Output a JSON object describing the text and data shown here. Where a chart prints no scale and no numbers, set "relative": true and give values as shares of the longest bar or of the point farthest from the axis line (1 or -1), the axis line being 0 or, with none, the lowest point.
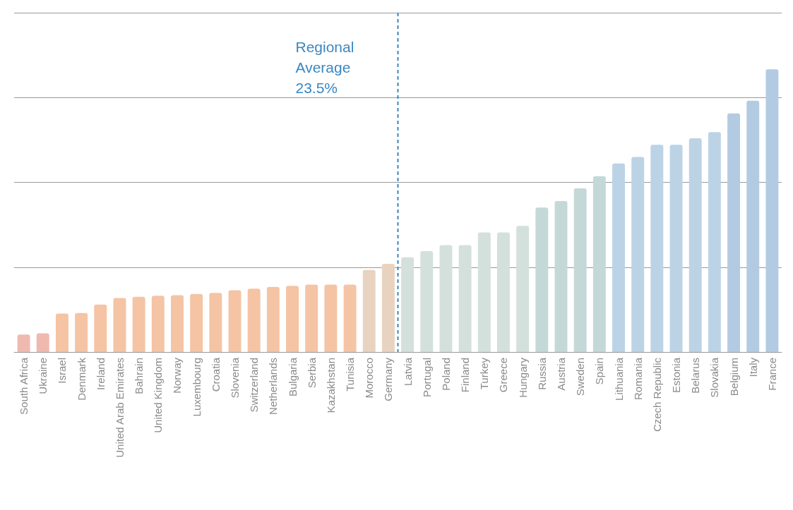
{
  "chart_data": {
    "type": "bar",
    "relative": true,
    "grid": "y",
    "categories": [
      "South Africa",
      "Ukraine",
      "Israel",
      "Denmark",
      "Ireland",
      "United Arab Emirates",
      "Bahrain",
      "United Kingdom",
      "Norway",
      "Luxembourg",
      "Croatia",
      "Slovenia",
      "Switzerland",
      "Netherlands",
      "Bulgaria",
      "Serbia",
      "Kazakhstan",
      "Tunisia",
      "Morocco",
      "Germany",
      "Latvia",
      "Portugal",
      "Poland",
      "Finland",
      "Turkey",
      "Greece",
      "Hungary",
      "Russia",
      "Austria",
      "Sweden",
      "Spain",
      "Lithuania",
      "Romania",
      "Czech Republic",
      "Estonia",
      "Belarus",
      "Slovakia",
      "Belgium",
      "Italy",
      "France"
    ],
    "values": [
      0.062,
      0.066,
      0.136,
      0.138,
      0.168,
      0.191,
      0.195,
      0.199,
      0.201,
      0.205,
      0.209,
      0.218,
      0.224,
      0.23,
      0.234,
      0.238,
      0.238,
      0.238,
      0.29,
      0.312,
      0.335,
      0.357,
      0.378,
      0.378,
      0.423,
      0.423,
      0.446,
      0.511,
      0.534,
      0.579,
      0.622,
      0.667,
      0.69,
      0.733,
      0.733,
      0.756,
      0.778,
      0.844,
      0.889,
      1
    ],
    "colors": [
      "#f0b9b0",
      "#f0b9b0",
      "#f4c4a4",
      "#f4c4a4",
      "#f4c4a4",
      "#f4c4a4",
      "#f4c4a4",
      "#f4c4a4",
      "#f4c4a4",
      "#f4c4a4",
      "#f4c4a4",
      "#f4c4a4",
      "#f4c4a4",
      "#f4c4a4",
      "#f4c4a4",
      "#f4c4a4",
      "#f4c4a4",
      "#f4c4a4",
      "#e8d3c0",
      "#e8d3c0",
      "#d3e0dc",
      "#d3e0dc",
      "#d3e0dc",
      "#d3e0dc",
      "#d3e0dc",
      "#d3e0dc",
      "#d3e0dc",
      "#c5d8d8",
      "#c5d8d8",
      "#c5d8d8",
      "#c5d8d8",
      "#bcd3e6",
      "#bcd3e6",
      "#bcd3e6",
      "#bcd3e6",
      "#bcd3e6",
      "#bcd3e6",
      "#b3cbe2",
      "#b3cbe2",
      "#b3cbe2"
    ],
    "ref_lines": [
      {
        "axis": "x",
        "value": "Latvia",
        "label": "Regional Average 23.5%",
        "color": "#3a87c0",
        "line_style": "dashed"
      }
    ]
  }
}
